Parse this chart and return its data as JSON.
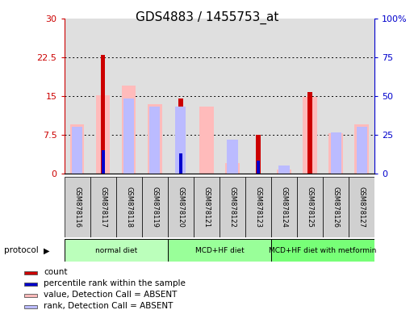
{
  "title": "GDS4883 / 1455753_at",
  "samples": [
    "GSM878116",
    "GSM878117",
    "GSM878118",
    "GSM878119",
    "GSM878120",
    "GSM878121",
    "GSM878122",
    "GSM878123",
    "GSM878124",
    "GSM878125",
    "GSM878126",
    "GSM878127"
  ],
  "count_values": [
    null,
    23.0,
    null,
    null,
    14.5,
    null,
    null,
    7.5,
    null,
    15.8,
    null,
    null
  ],
  "percentile_values": [
    null,
    15.2,
    null,
    null,
    13.0,
    null,
    null,
    8.2,
    null,
    null,
    null,
    null
  ],
  "value_absent": [
    9.5,
    15.2,
    17.0,
    13.5,
    null,
    13.0,
    2.0,
    null,
    0.8,
    14.8,
    7.8,
    9.5
  ],
  "rank_absent_pct": [
    30.0,
    null,
    48.5,
    43.0,
    43.0,
    null,
    22.0,
    null,
    5.0,
    null,
    26.5,
    30.0
  ],
  "groups": [
    {
      "label": "normal diet",
      "color": "#bbffbb",
      "indices": [
        0,
        1,
        2,
        3
      ]
    },
    {
      "label": "MCD+HF diet",
      "color": "#99ff99",
      "indices": [
        4,
        5,
        6,
        7
      ]
    },
    {
      "label": "MCD+HF diet with metformin",
      "color": "#77ff77",
      "indices": [
        8,
        9,
        10,
        11
      ]
    }
  ],
  "ylim_left": [
    0,
    30
  ],
  "ylim_right": [
    0,
    100
  ],
  "yticks_left": [
    0,
    7.5,
    15,
    22.5,
    30
  ],
  "ytick_labels_left": [
    "0",
    "7.5",
    "15",
    "22.5",
    "30"
  ],
  "yticks_right": [
    0,
    25,
    50,
    75,
    100
  ],
  "ytick_labels_right": [
    "0",
    "25",
    "50",
    "75",
    "100%"
  ],
  "count_color": "#cc0000",
  "percentile_color": "#0000cc",
  "value_absent_color": "#ffbbbb",
  "rank_absent_color": "#bbbbff",
  "bg_color": "#ffffff",
  "plot_bg": "#e8e8e8",
  "legend_items": [
    {
      "color": "#cc0000",
      "label": "count"
    },
    {
      "color": "#0000cc",
      "label": "percentile rank within the sample"
    },
    {
      "color": "#ffbbbb",
      "label": "value, Detection Call = ABSENT"
    },
    {
      "color": "#bbbbff",
      "label": "rank, Detection Call = ABSENT"
    }
  ]
}
